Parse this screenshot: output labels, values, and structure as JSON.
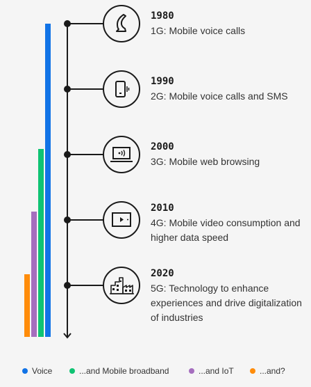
{
  "timeline": [
    {
      "year": "1980",
      "description": "1G: Mobile voice calls",
      "icon": "horn-icon"
    },
    {
      "year": "1990",
      "description": "2G: Mobile voice calls and SMS",
      "icon": "mobile-phone-icon"
    },
    {
      "year": "2000",
      "description": "3G: Mobile web browsing",
      "icon": "laptop-icon"
    },
    {
      "year": "2010",
      "description": "4G: Mobile video consumption and higher data speed",
      "icon": "video-player-icon"
    },
    {
      "year": "2020",
      "description": "5G: Technology to enhance experiences and drive digitalization of industries",
      "icon": "factory-icon"
    }
  ],
  "legend": [
    {
      "label": "Voice",
      "color": "#1173e6"
    },
    {
      "label": "...and Mobile broadband",
      "color": "#0fc373"
    },
    {
      "label": "...and IoT",
      "color": "#a56ebe"
    },
    {
      "label": "...and?",
      "color": "#ff8c0a"
    }
  ],
  "chart_data": {
    "type": "bar",
    "categories": [
      "Voice",
      "...and Mobile broadband",
      "...and IoT",
      "...and?"
    ],
    "values": [
      5,
      3,
      2,
      1
    ],
    "colors": [
      "#1173e6",
      "#0fc373",
      "#a56ebe",
      "#ff8c0a"
    ]
  }
}
